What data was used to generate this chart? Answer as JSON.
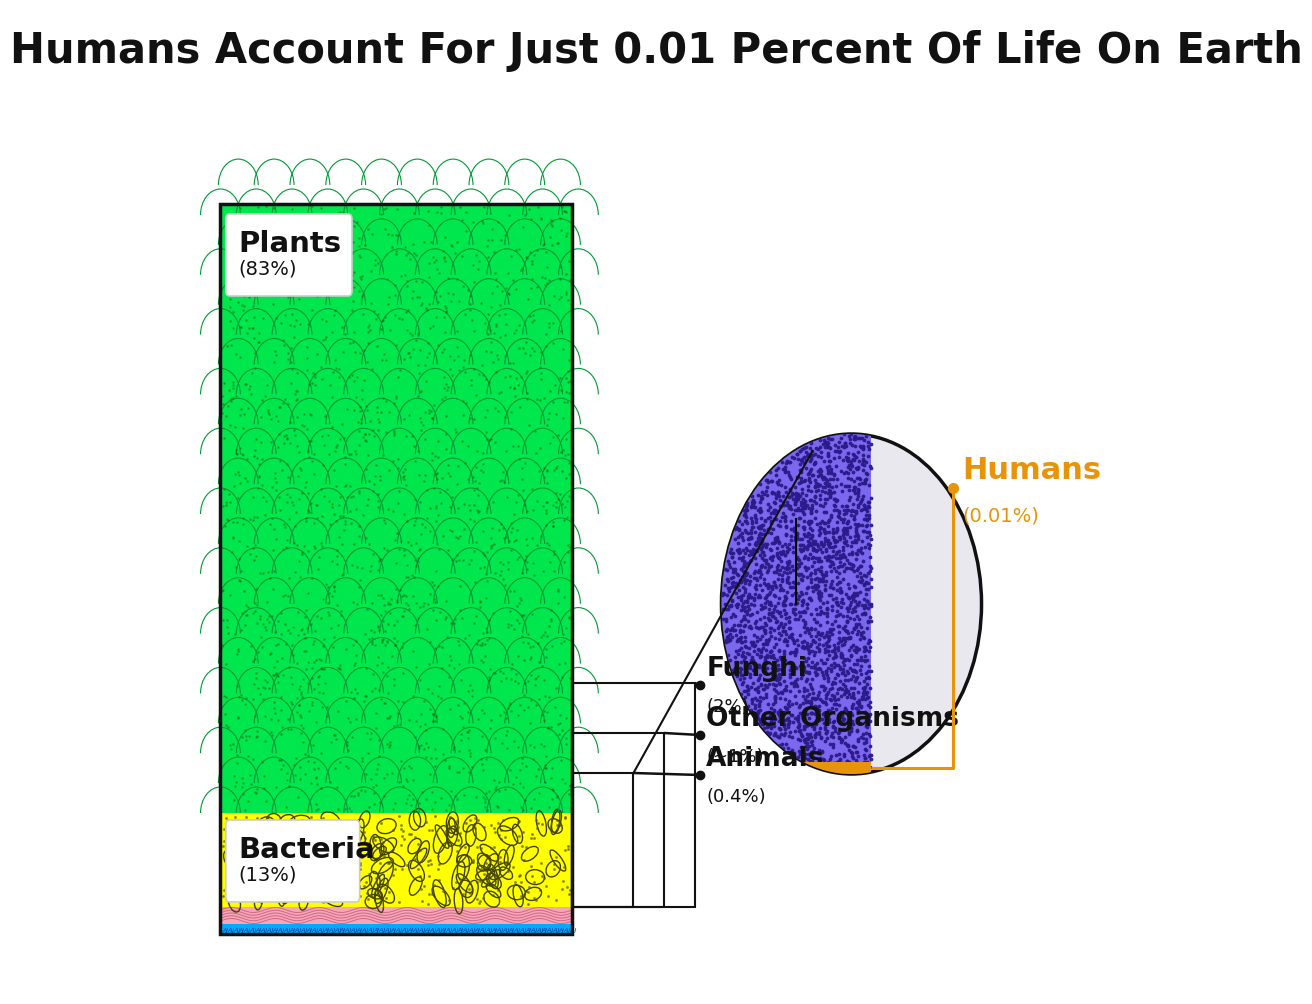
{
  "title": "Humans Account For Just 0.01 Percent Of Life On Earth",
  "title_fontsize": 30,
  "background_color": "#ffffff",
  "plants_color": "#00e64d",
  "plants_dark": "#009933",
  "bacteria_color": "#ffff00",
  "archaea_color": "#f4a7b9",
  "archaea_dark": "#cc5577",
  "aquatic_color": "#00aaff",
  "aquatic_dark": "#003399",
  "circle_bg": "#e8e8ee",
  "animals_color": "#7b68ee",
  "animals_dot": "#2a1a8a",
  "humans_color": "#e8940a",
  "ann_color": "#111111",
  "label_color": "#111111",
  "orange_color": "#e8940a"
}
